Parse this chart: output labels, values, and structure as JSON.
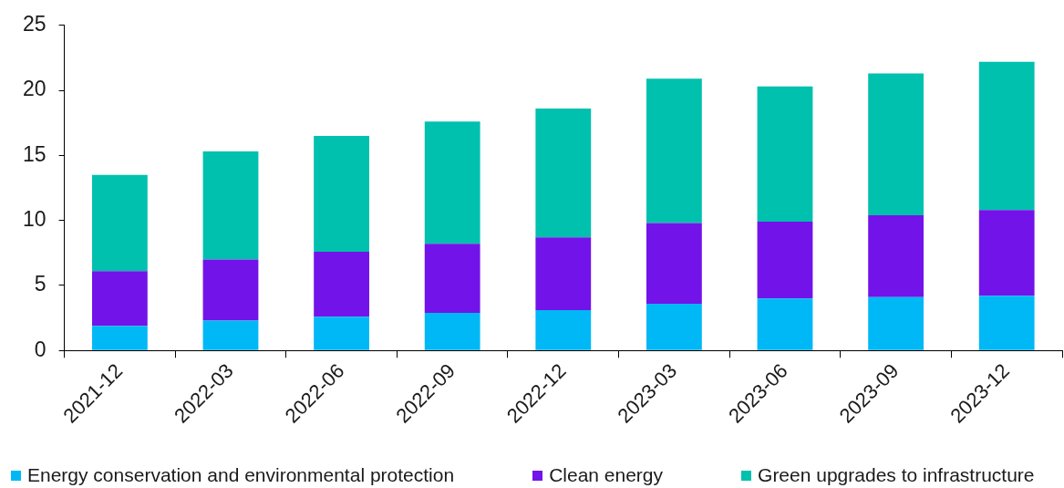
{
  "chart_data": {
    "type": "bar",
    "stacked": true,
    "categories": [
      "2021-12",
      "2022-03",
      "2022-06",
      "2022-09",
      "2022-12",
      "2023-03",
      "2023-06",
      "2023-09",
      "2023-12"
    ],
    "series": [
      {
        "name": "Energy conservation and environmental protection",
        "color": "#00b8f5",
        "values": [
          1.9,
          2.3,
          2.6,
          2.9,
          3.1,
          3.6,
          4.0,
          4.1,
          4.2
        ]
      },
      {
        "name": "Clean energy",
        "color": "#7213ea",
        "values": [
          4.2,
          4.7,
          5.0,
          5.3,
          5.6,
          6.2,
          5.9,
          6.3,
          6.6
        ]
      },
      {
        "name": "Green upgrades to infrastructure",
        "color": "#00c0ae",
        "values": [
          7.4,
          8.3,
          8.9,
          9.4,
          9.9,
          11.1,
          10.4,
          10.9,
          11.4
        ]
      }
    ],
    "ylim": [
      0,
      25
    ],
    "yticks": [
      0,
      5,
      10,
      15,
      20,
      25
    ],
    "grid": false,
    "legend": "bottom"
  }
}
